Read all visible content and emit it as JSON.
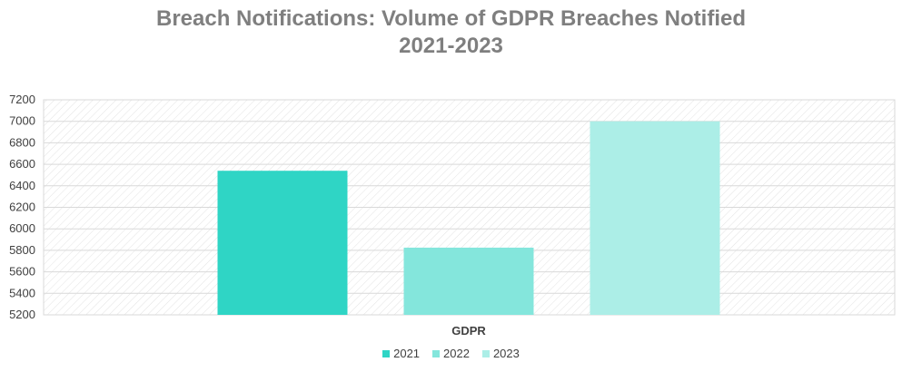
{
  "chart_data": {
    "type": "bar",
    "title_line1": "Breach Notifications: Volume of GDPR Breaches Notified",
    "title_line2": "2021-2023",
    "categories": [
      "GDPR"
    ],
    "series": [
      {
        "name": "2021",
        "values": [
          6540
        ],
        "color": "#2fd5c5"
      },
      {
        "name": "2022",
        "values": [
          5825
        ],
        "color": "#84e6dc"
      },
      {
        "name": "2023",
        "values": [
          7000
        ],
        "color": "#aceee7"
      }
    ],
    "ylim": [
      5200,
      7200
    ],
    "yticks": [
      "5200",
      "5400",
      "5600",
      "5800",
      "6000",
      "6200",
      "6400",
      "6600",
      "6800",
      "7000",
      "7200"
    ],
    "grid": true,
    "legend_position": "bottom"
  }
}
